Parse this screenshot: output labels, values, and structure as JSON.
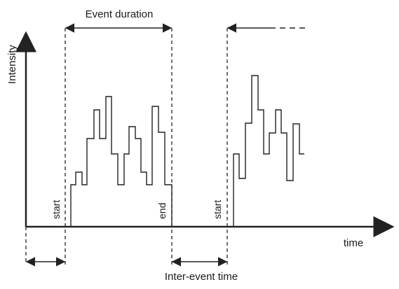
{
  "labels": {
    "y_axis": "Intensity",
    "x_axis": "time",
    "event_duration": "Event duration",
    "inter_event_time": "Inter-event time",
    "start_1": "start",
    "end_1": "end",
    "start_2": "start"
  },
  "colors": {
    "line": "#222222",
    "background": "#ffffff"
  }
}
